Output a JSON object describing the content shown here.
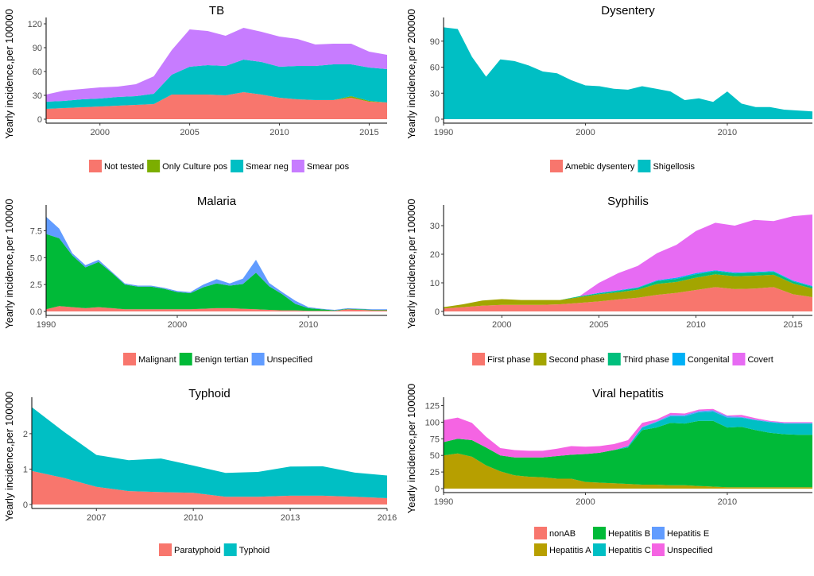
{
  "chart_data": [
    {
      "type": "area",
      "stacked": true,
      "title": "TB",
      "ylabel": "Yearly incidence,per 100000",
      "xlabel": "",
      "xlim": [
        1997,
        2016
      ],
      "ylim": [
        0,
        120
      ],
      "xticks": [
        2000,
        2005,
        2010,
        2015
      ],
      "yticks": [
        0,
        30,
        60,
        90,
        120
      ],
      "x": [
        1997,
        1998,
        1999,
        2000,
        2001,
        2002,
        2003,
        2004,
        2005,
        2006,
        2007,
        2008,
        2009,
        2010,
        2011,
        2012,
        2013,
        2014,
        2015,
        2016
      ],
      "series": [
        {
          "name": "Not tested",
          "color": "#F8766D",
          "values": [
            13,
            14,
            15,
            16,
            17,
            18,
            19,
            31,
            31,
            31,
            30,
            34,
            31,
            27,
            25,
            24,
            24,
            27,
            22,
            21
          ]
        },
        {
          "name": "Only Culture pos",
          "color": "#7CAE00",
          "values": [
            0,
            0,
            0,
            0,
            0,
            0,
            0,
            0,
            0,
            0,
            0,
            0,
            0,
            0,
            0,
            0,
            0,
            2,
            1,
            0
          ]
        },
        {
          "name": "Smear neg",
          "color": "#00BFC4",
          "values": [
            9,
            9,
            10,
            10,
            11,
            11,
            13,
            25,
            35,
            37,
            37,
            41,
            41,
            39,
            42,
            43,
            45,
            40,
            42,
            42
          ]
        },
        {
          "name": "Smear pos",
          "color": "#C77CFF",
          "values": [
            9,
            13,
            13,
            14,
            13,
            15,
            22,
            31,
            47,
            43,
            38,
            40,
            38,
            38,
            34,
            27,
            26,
            26,
            20,
            18
          ]
        }
      ],
      "legend": "bottom"
    },
    {
      "type": "area",
      "stacked": true,
      "title": "Dysentery",
      "ylabel": "Yearly incidence,per 200000",
      "xlabel": "",
      "xlim": [
        1990,
        2016
      ],
      "ylim": [
        0,
        110
      ],
      "xticks": [
        1990,
        2000,
        2010
      ],
      "yticks": [
        0,
        30,
        60,
        90
      ],
      "x": [
        1990,
        1991,
        1992,
        1993,
        1994,
        1995,
        1996,
        1997,
        1998,
        1999,
        2000,
        2001,
        2002,
        2003,
        2004,
        2005,
        2006,
        2007,
        2008,
        2009,
        2010,
        2011,
        2012,
        2013,
        2014,
        2015,
        2016
      ],
      "series": [
        {
          "name": "Amebic dysentery",
          "color": "#F8766D",
          "values": [
            0,
            0,
            0,
            0,
            0,
            0,
            0,
            0,
            0,
            0,
            0,
            0,
            0,
            0,
            0,
            0,
            0,
            0,
            0,
            0,
            0,
            0,
            0,
            0,
            0,
            0,
            0
          ]
        },
        {
          "name": "Shigellosis",
          "color": "#00BFC4",
          "values": [
            106,
            104,
            72,
            49,
            69,
            67,
            62,
            55,
            53,
            45,
            39,
            38,
            35,
            34,
            38,
            35,
            32,
            22,
            24,
            20,
            32,
            18,
            14,
            14,
            11,
            10,
            9
          ]
        }
      ],
      "legend": "bottom"
    },
    {
      "type": "area",
      "stacked": true,
      "title": "Malaria",
      "ylabel": "Yearly incidence,per 100000",
      "xlabel": "",
      "xlim": [
        1990,
        2016
      ],
      "ylim": [
        0,
        9.3
      ],
      "xticks": [
        1990,
        2000,
        2010
      ],
      "yticks": [
        0.0,
        2.5,
        5.0,
        7.5
      ],
      "ytickLabels": [
        "0.0",
        "2.5",
        "5.0",
        "7.5"
      ],
      "x": [
        1990,
        1991,
        1992,
        1993,
        1994,
        1995,
        1996,
        1997,
        1998,
        1999,
        2000,
        2001,
        2002,
        2003,
        2004,
        2005,
        2006,
        2007,
        2008,
        2009,
        2010,
        2011,
        2012,
        2013,
        2014,
        2015,
        2016
      ],
      "series": [
        {
          "name": "Malignant",
          "color": "#F8766D",
          "values": [
            0.2,
            0.5,
            0.4,
            0.3,
            0.4,
            0.3,
            0.2,
            0.2,
            0.2,
            0.2,
            0.2,
            0.2,
            0.25,
            0.3,
            0.3,
            0.25,
            0.2,
            0.15,
            0.1,
            0.1,
            0.05,
            0.05,
            0.05,
            0.2,
            0.15,
            0.1,
            0.1
          ]
        },
        {
          "name": "Benign tertian",
          "color": "#00BA38",
          "values": [
            7.0,
            6.3,
            4.8,
            3.8,
            4.2,
            3.3,
            2.3,
            2.1,
            2.1,
            1.9,
            1.6,
            1.5,
            2.0,
            2.3,
            2.1,
            2.3,
            3.4,
            2.2,
            1.5,
            0.6,
            0.25,
            0.15,
            0.05,
            0.05,
            0.05,
            0.05,
            0.05
          ]
        },
        {
          "name": "Unspecified",
          "color": "#619CFF",
          "values": [
            1.6,
            0.9,
            0.2,
            0.2,
            0.2,
            0.1,
            0.1,
            0.1,
            0.1,
            0.1,
            0.1,
            0.1,
            0.25,
            0.4,
            0.2,
            0.5,
            1.2,
            0.3,
            0.2,
            0.3,
            0.1,
            0.05,
            0.05,
            0.05,
            0.05,
            0.05,
            0.05
          ]
        }
      ],
      "legend": "bottom"
    },
    {
      "type": "area",
      "stacked": true,
      "title": "Syphilis",
      "ylabel": "Yearly incidence,per 100000",
      "xlabel": "",
      "xlim": [
        1997,
        2016
      ],
      "ylim": [
        0,
        35
      ],
      "xticks": [
        2000,
        2005,
        2010,
        2015
      ],
      "yticks": [
        0,
        10,
        20,
        30
      ],
      "x": [
        1997,
        1998,
        1999,
        2000,
        2001,
        2002,
        2003,
        2004,
        2005,
        2006,
        2007,
        2008,
        2009,
        2010,
        2011,
        2012,
        2013,
        2014,
        2015,
        2016
      ],
      "series": [
        {
          "name": "First phase",
          "color": "#F8766D",
          "values": [
            1.0,
            1.5,
            2.0,
            2.3,
            2.3,
            2.3,
            2.5,
            3.0,
            3.5,
            4.2,
            4.8,
            5.8,
            6.5,
            7.5,
            8.5,
            7.8,
            8.0,
            8.5,
            6.0,
            5.0
          ]
        },
        {
          "name": "Second phase",
          "color": "#A3A500",
          "values": [
            0.5,
            1.0,
            1.8,
            2.0,
            1.7,
            1.7,
            1.5,
            2.0,
            2.5,
            2.5,
            2.8,
            3.8,
            3.8,
            4.3,
            4.5,
            4.5,
            4.5,
            4.3,
            3.8,
            3.0
          ]
        },
        {
          "name": "Third phase",
          "color": "#00BF7D",
          "values": [
            0,
            0,
            0,
            0,
            0,
            0,
            0,
            0.3,
            0.3,
            0.5,
            0.6,
            1.0,
            1.1,
            1.2,
            1.1,
            1.0,
            1.0,
            1.0,
            0.7,
            0.6
          ]
        },
        {
          "name": "Congenital",
          "color": "#00B0F6",
          "values": [
            0,
            0,
            0,
            0,
            0,
            0,
            0,
            0,
            0.2,
            0.2,
            0.2,
            0.3,
            0.4,
            0.4,
            0.3,
            0.3,
            0.3,
            0.3,
            0.3,
            0.3
          ]
        },
        {
          "name": "Covert",
          "color": "#E76BF3",
          "values": [
            0,
            0,
            0,
            0,
            0,
            0,
            0,
            0,
            3.5,
            6.0,
            7.5,
            9.5,
            11.5,
            14.7,
            16.6,
            16.4,
            18.2,
            17.5,
            22.5,
            25.0
          ]
        }
      ],
      "legend": "bottom"
    },
    {
      "type": "area",
      "stacked": true,
      "title": "Typhoid",
      "ylabel": "Yearly incidence,per 100000",
      "xlabel": "",
      "xlim": [
        2005,
        2016
      ],
      "ylim": [
        0,
        2.85
      ],
      "xticks": [
        2007,
        2010,
        2013,
        2016
      ],
      "yticks": [
        0,
        1,
        2
      ],
      "x": [
        2005,
        2006,
        2007,
        2008,
        2009,
        2010,
        2011,
        2012,
        2013,
        2014,
        2015,
        2016
      ],
      "series": [
        {
          "name": "Paratyphoid",
          "color": "#F8766D",
          "values": [
            0.95,
            0.75,
            0.5,
            0.38,
            0.35,
            0.33,
            0.22,
            0.22,
            0.25,
            0.25,
            0.22,
            0.18
          ]
        },
        {
          "name": "Typhoid",
          "color": "#00BFC4",
          "values": [
            1.8,
            1.3,
            0.9,
            0.87,
            0.95,
            0.77,
            0.67,
            0.7,
            0.82,
            0.83,
            0.68,
            0.64
          ]
        }
      ],
      "legend": "bottom"
    },
    {
      "type": "area",
      "stacked": true,
      "title": "Viral hepatitis",
      "ylabel": "Yearly incidence,per 100000",
      "xlabel": "",
      "xlim": [
        1990,
        2016
      ],
      "ylim": [
        0,
        128
      ],
      "xticks": [
        1990,
        2000,
        2010
      ],
      "yticks": [
        0,
        25,
        50,
        75,
        100,
        125
      ],
      "x": [
        1990,
        1991,
        1992,
        1993,
        1994,
        1995,
        1996,
        1997,
        1998,
        1999,
        2000,
        2001,
        2002,
        2003,
        2004,
        2005,
        2006,
        2007,
        2008,
        2009,
        2010,
        2011,
        2012,
        2013,
        2014,
        2015,
        2016
      ],
      "series": [
        {
          "name": "nonAB",
          "color": "#F8766D",
          "values": [
            0,
            0,
            0,
            0,
            0,
            0,
            0,
            0,
            0,
            0,
            0,
            0,
            0,
            0,
            0,
            0,
            0,
            0,
            0,
            0,
            0,
            0,
            0,
            0,
            0,
            0,
            0
          ]
        },
        {
          "name": "Hepatitis A",
          "color": "#B79F00",
          "values": [
            50,
            53,
            48,
            35,
            26,
            20,
            18,
            17,
            15,
            15,
            10,
            9,
            8,
            7,
            6,
            6,
            5,
            5,
            4,
            3,
            2,
            2,
            2,
            2,
            2,
            2,
            2
          ]
        },
        {
          "name": "Hepatitis B",
          "color": "#00BA38",
          "values": [
            20,
            22,
            25,
            27,
            24,
            27,
            29,
            30,
            34,
            36,
            42,
            45,
            50,
            55,
            82,
            86,
            94,
            93,
            98,
            99,
            90,
            91,
            86,
            82,
            80,
            79,
            79
          ]
        },
        {
          "name": "Hepatitis C",
          "color": "#00BFC4",
          "values": [
            0,
            0,
            0,
            0,
            0,
            0,
            0,
            0,
            0,
            0,
            0,
            0,
            0,
            2,
            4,
            8,
            10,
            11,
            13,
            14,
            15,
            14,
            15,
            16,
            16,
            17,
            17
          ]
        },
        {
          "name": "Hepatitis E",
          "color": "#619CFF",
          "values": [
            0,
            0,
            0,
            0,
            0,
            0,
            0,
            0,
            0,
            0,
            0,
            0,
            0,
            0,
            1,
            1,
            2,
            2,
            2,
            2,
            2,
            1,
            1,
            1,
            1,
            1,
            1
          ]
        },
        {
          "name": "Unspecified",
          "color": "#F564E3",
          "values": [
            33,
            32,
            26,
            16,
            11,
            11,
            10,
            10,
            11,
            13,
            11,
            10,
            9,
            9,
            6,
            3,
            3,
            2,
            2,
            2,
            1,
            3,
            2,
            1,
            1,
            1,
            1
          ]
        }
      ],
      "legend": "bottom"
    }
  ]
}
